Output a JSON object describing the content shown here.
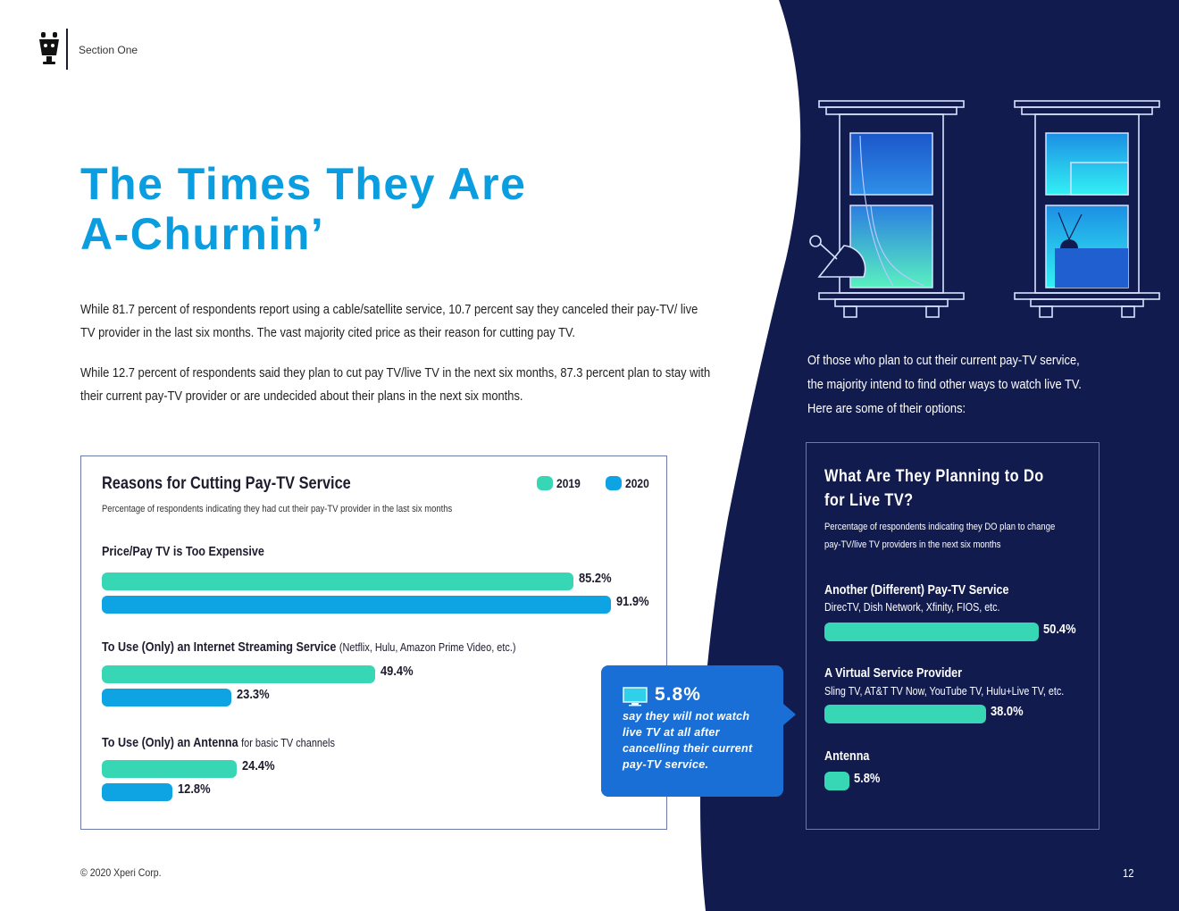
{
  "header": {
    "section_label": "Section One",
    "logo_icon": "tivo-mascot-icon"
  },
  "title": {
    "line1": "The Times They Are",
    "line2": "A-Churnin’"
  },
  "paragraphs": [
    "While 81.7 percent of respondents report using a cable/satellite service, 10.7 percent say they canceled their pay-TV/ live TV provider in the last six months. The vast majority cited price as their reason for cutting pay TV.",
    "While 12.7 percent of respondents said they plan to cut pay TV/live TV in the next six months, 87.3 percent plan to stay with their current pay-TV provider or are undecided about their plans in the next six months."
  ],
  "chart_data": [
    {
      "type": "bar",
      "title": "Reasons for Cutting Pay-TV Service",
      "subtitle": "Percentage of respondents indicating they had cut their pay-TV provider in the last six months",
      "xlim": [
        0,
        100
      ],
      "legend": [
        "2019",
        "2020"
      ],
      "categories": [
        {
          "label": "Price/Pay TV is Too Expensive",
          "detail": ""
        },
        {
          "label": "To Use (Only) an Internet Streaming Service",
          "detail": "(Netflix, Hulu, Amazon Prime Video, etc.)"
        },
        {
          "label": "To Use (Only) an Antenna",
          "detail": "for basic TV channels"
        }
      ],
      "series": [
        {
          "name": "2019",
          "values": [
            85.2,
            49.4,
            24.4
          ],
          "labels": [
            "85.2%",
            "49.4%",
            "24.4%"
          ]
        },
        {
          "name": "2020",
          "values": [
            91.9,
            23.3,
            12.8
          ],
          "labels": [
            "91.9%",
            "23.3%",
            "12.8%"
          ]
        }
      ]
    },
    {
      "type": "bar",
      "title": "What Are They Planning to Do for Live TV?",
      "subtitle": "Percentage of respondents indicating they DO plan to change pay-TV/live TV providers in the next six months",
      "xlim": [
        0,
        100
      ],
      "categories": [
        {
          "label": "Another (Different) Pay-TV Service",
          "detail": "DirecTV, Dish Network, Xfinity, FIOS, etc."
        },
        {
          "label": "A Virtual Service Provider",
          "detail": "Sling TV, AT&T TV Now, YouTube TV, Hulu+Live TV, etc."
        },
        {
          "label": "Antenna",
          "detail": ""
        }
      ],
      "values": [
        50.4,
        38.0,
        5.8
      ],
      "labels": [
        "50.4%",
        "38.0%",
        "5.8%"
      ]
    }
  ],
  "callout": {
    "value": "5.8%",
    "text": "say they will not watch live TV at all after cancelling their current pay-TV service.",
    "icon": "tv-icon"
  },
  "right": {
    "intro": "Of those who plan to cut their current pay-TV service, the majority intend to find other ways to watch live TV. Here are some of their options:"
  },
  "colors": {
    "c2019": "#37d6b4",
    "c2020": "#0ea3e2",
    "navy": "#111b4d",
    "title_blue": "#0a9de0",
    "callout_blue": "#1a6fd6"
  },
  "footer": {
    "copyright": "© 2020 Xperi Corp.",
    "page_number": "12"
  }
}
